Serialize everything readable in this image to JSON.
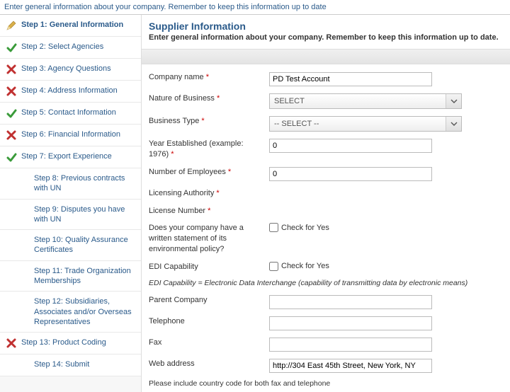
{
  "topText": "Enter general information about your company. Remember to keep this information up to date",
  "steps": [
    {
      "icon": "pencil",
      "label": "Step 1: General Information",
      "current": true,
      "sub": false
    },
    {
      "icon": "check",
      "label": "Step 2: Select Agencies",
      "sub": false
    },
    {
      "icon": "cross",
      "label": "Step 3: Agency Questions",
      "sub": false
    },
    {
      "icon": "cross",
      "label": "Step 4: Address Information",
      "sub": false
    },
    {
      "icon": "check",
      "label": "Step 5: Contact Information",
      "sub": false
    },
    {
      "icon": "cross",
      "label": "Step 6: Financial Information",
      "sub": false
    },
    {
      "icon": "check",
      "label": "Step 7: Export Experience",
      "sub": false
    },
    {
      "icon": "none",
      "label": "Step 8: Previous contracts with UN",
      "sub": true
    },
    {
      "icon": "none",
      "label": "Step 9: Disputes you have with UN",
      "sub": true
    },
    {
      "icon": "none",
      "label": "Step 10: Quality Assurance Certificates",
      "sub": true
    },
    {
      "icon": "none",
      "label": "Step 11: Trade Organization Memberships",
      "sub": true
    },
    {
      "icon": "none",
      "label": "Step 12: Subsidiaries, Associates and/or Overseas Representatives",
      "sub": true
    },
    {
      "icon": "cross",
      "label": "Step 13: Product Coding",
      "sub": false
    },
    {
      "icon": "none",
      "label": "Step 14: Submit",
      "sub": true
    }
  ],
  "panel": {
    "title": "Supplier Information",
    "subtitle": "Enter general information about your company. Remember to keep this information up to date."
  },
  "fields": {
    "companyName": {
      "label": "Company name",
      "req": true,
      "value": "PD Test Account"
    },
    "nature": {
      "label": "Nature of Business",
      "req": true,
      "value": "SELECT"
    },
    "btype": {
      "label": "Business Type",
      "req": true,
      "value": "-- SELECT --"
    },
    "year": {
      "label": "Year Established (example: 1976)",
      "req": true,
      "value": "0"
    },
    "employees": {
      "label": "Number of Employees",
      "req": true,
      "value": "0"
    },
    "licAuth": {
      "label": "Licensing Authority",
      "req": true
    },
    "licNum": {
      "label": "License Number",
      "req": true
    },
    "envPolicy": {
      "label": "Does your company have a written statement of its environmental policy?",
      "check": "Check for Yes"
    },
    "ediCap": {
      "label": "EDI Capability",
      "check": "Check for Yes"
    },
    "ediNote": "EDI Capability = Electronic Data Interchange (capability of transmitting data by electronic means)",
    "parent": {
      "label": "Parent Company"
    },
    "telephone": {
      "label": "Telephone"
    },
    "fax": {
      "label": "Fax"
    },
    "web": {
      "label": "Web address",
      "value": "http://304 East 45th Street, New York, NY"
    },
    "footnote": "Please include country code for both fax and telephone"
  }
}
